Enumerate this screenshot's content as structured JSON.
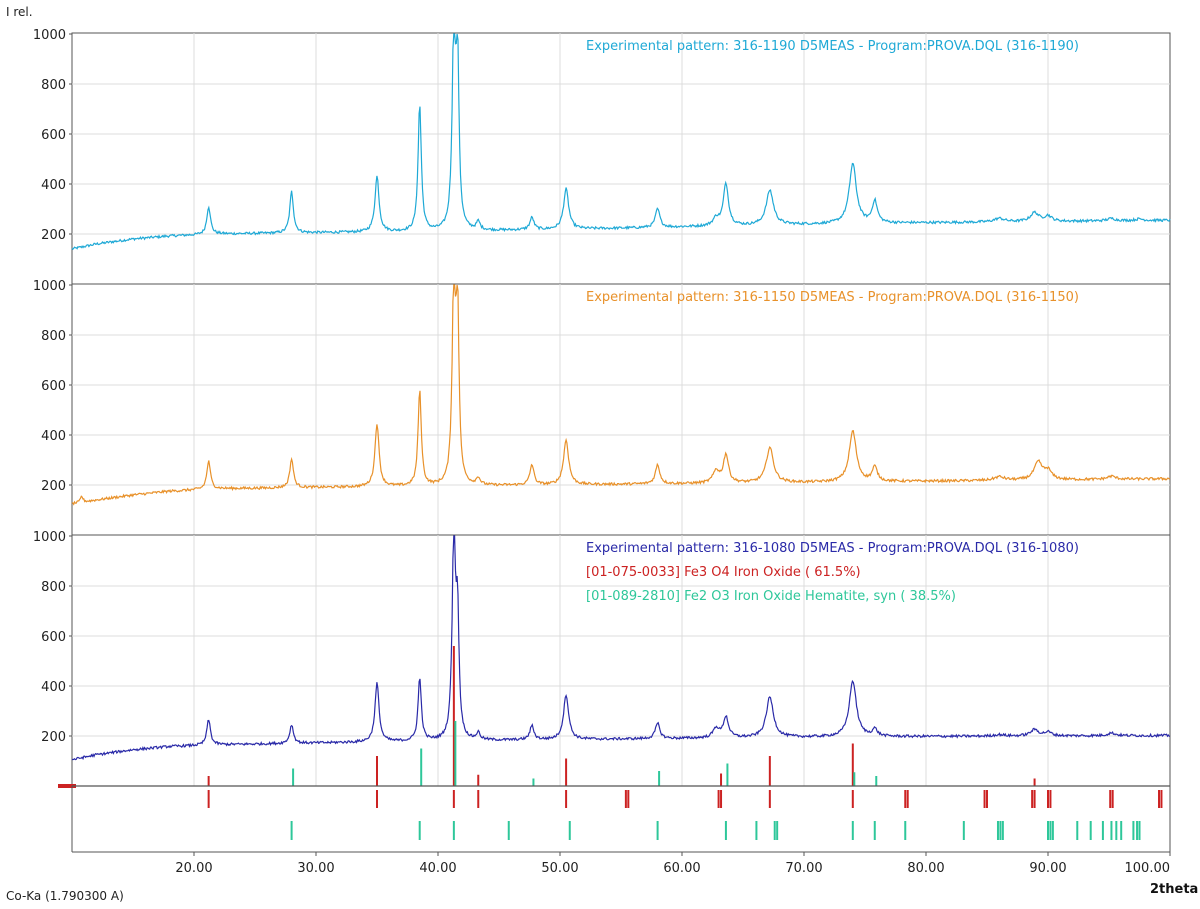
{
  "chart_data": {
    "type": "line",
    "y_axis_title": "I rel.",
    "x_axis_title": "2theta",
    "radiation_label": "Co-Ka (1.790300 A)",
    "xlim": [
      10,
      100
    ],
    "ylim": [
      0,
      1000
    ],
    "x_ticks": [
      {
        "value": 20,
        "label": "20.00"
      },
      {
        "value": 30,
        "label": "30.00"
      },
      {
        "value": 40,
        "label": "40.00"
      },
      {
        "value": 50,
        "label": "50.00"
      },
      {
        "value": 60,
        "label": "60.00"
      },
      {
        "value": 70,
        "label": "70.00"
      },
      {
        "value": 80,
        "label": "80.00"
      },
      {
        "value": 90,
        "label": "90.00"
      },
      {
        "value": 100,
        "label": "100.00"
      }
    ],
    "y_ticks": [
      {
        "value": 200,
        "label": "200"
      },
      {
        "value": 400,
        "label": "400"
      },
      {
        "value": 600,
        "label": "600"
      },
      {
        "value": 800,
        "label": "800"
      },
      {
        "value": 1000,
        "label": "1000"
      }
    ],
    "grid": true,
    "panels": [
      {
        "legend": [
          {
            "text": "Experimental pattern: 316-1190 D5MEAS - Program:PROVA.DQL (316-1190)",
            "color": "#1fa9d6"
          }
        ],
        "series": {
          "color": "#1fa9d6",
          "baseline": [
            [
              10,
              140
            ],
            [
              12,
              160
            ],
            [
              15,
              180
            ],
            [
              18,
              192
            ],
            [
              22,
              200
            ],
            [
              30,
              205
            ],
            [
              40,
              210
            ],
            [
              50,
              218
            ],
            [
              60,
              228
            ],
            [
              70,
              238
            ],
            [
              80,
              245
            ],
            [
              90,
              250
            ],
            [
              100,
              255
            ]
          ],
          "peaks": [
            [
              21.2,
              310,
              0.18
            ],
            [
              28.0,
              370,
              0.18
            ],
            [
              35.0,
              430,
              0.2
            ],
            [
              38.5,
              715,
              0.16
            ],
            [
              41.3,
              1000,
              0.16
            ],
            [
              41.6,
              880,
              0.14
            ],
            [
              43.3,
              245,
              0.18
            ],
            [
              47.7,
              265,
              0.2
            ],
            [
              50.5,
              380,
              0.25
            ],
            [
              58.0,
              300,
              0.22
            ],
            [
              62.8,
              260,
              0.3
            ],
            [
              63.6,
              400,
              0.25
            ],
            [
              67.2,
              375,
              0.35
            ],
            [
              74.0,
              480,
              0.35
            ],
            [
              75.8,
              330,
              0.25
            ],
            [
              86,
              262,
              0.5
            ],
            [
              88.9,
              285,
              0.4
            ],
            [
              90,
              272,
              0.35
            ],
            [
              95.2,
              262,
              0.4
            ],
            [
              97.5,
              260,
              0.4
            ]
          ]
        }
      },
      {
        "legend": [
          {
            "text": "Experimental pattern: 316-1150 D5MEAS - Program:PROVA.DQL (316-1150)",
            "color": "#e8912a"
          }
        ],
        "series": {
          "color": "#e8912a",
          "baseline": [
            [
              10,
              125
            ],
            [
              12,
              140
            ],
            [
              15,
              160
            ],
            [
              18,
              175
            ],
            [
              22,
              185
            ],
            [
              30,
              190
            ],
            [
              40,
              195
            ],
            [
              50,
              200
            ],
            [
              60,
              205
            ],
            [
              70,
              210
            ],
            [
              80,
              215
            ],
            [
              90,
              220
            ],
            [
              100,
              225
            ]
          ],
          "peaks": [
            [
              10.8,
              155,
              0.12
            ],
            [
              21.2,
              295,
              0.18
            ],
            [
              28.0,
              305,
              0.18
            ],
            [
              35.0,
              445,
              0.2
            ],
            [
              38.5,
              575,
              0.16
            ],
            [
              41.3,
              1000,
              0.16
            ],
            [
              41.6,
              880,
              0.14
            ],
            [
              43.3,
              225,
              0.18
            ],
            [
              47.7,
              280,
              0.2
            ],
            [
              50.5,
              380,
              0.25
            ],
            [
              58.0,
              280,
              0.22
            ],
            [
              62.8,
              255,
              0.3
            ],
            [
              63.6,
              320,
              0.25
            ],
            [
              67.2,
              350,
              0.35
            ],
            [
              74.0,
              415,
              0.35
            ],
            [
              75.8,
              270,
              0.25
            ],
            [
              86,
              232,
              0.5
            ],
            [
              89.2,
              290,
              0.4
            ],
            [
              90,
              255,
              0.35
            ],
            [
              95.2,
              235,
              0.4
            ]
          ]
        }
      },
      {
        "legend": [
          {
            "text": "Experimental pattern: 316-1080 D5MEAS - Program:PROVA.DQL (316-1080)",
            "color": "#2a2aa8"
          },
          {
            "text": "[01-075-0033] Fe3 O4 Iron Oxide ( 61.5%)",
            "color": "#cc2222"
          },
          {
            "text": "[01-089-2810] Fe2 O3 Iron Oxide Hematite, syn ( 38.5%)",
            "color": "#2ec79a"
          }
        ],
        "series": {
          "color": "#2a2aa8",
          "baseline": [
            [
              10,
              105
            ],
            [
              12,
              125
            ],
            [
              15,
              145
            ],
            [
              18,
              158
            ],
            [
              22,
              165
            ],
            [
              30,
              172
            ],
            [
              40,
              180
            ],
            [
              50,
              185
            ],
            [
              60,
              190
            ],
            [
              70,
              195
            ],
            [
              80,
              198
            ],
            [
              90,
              200
            ],
            [
              100,
              202
            ]
          ],
          "peaks": [
            [
              21.2,
              265,
              0.18
            ],
            [
              28.0,
              245,
              0.18
            ],
            [
              35.0,
              410,
              0.2
            ],
            [
              38.5,
              430,
              0.16
            ],
            [
              41.3,
              1000,
              0.16
            ],
            [
              41.6,
              650,
              0.14
            ],
            [
              43.3,
              210,
              0.18
            ],
            [
              47.7,
              240,
              0.2
            ],
            [
              50.5,
              365,
              0.25
            ],
            [
              58.0,
              250,
              0.22
            ],
            [
              62.8,
              230,
              0.3
            ],
            [
              63.6,
              275,
              0.25
            ],
            [
              67.2,
              355,
              0.35
            ],
            [
              74.0,
              420,
              0.35
            ],
            [
              75.8,
              225,
              0.25
            ],
            [
              86,
              205,
              0.5
            ],
            [
              88.9,
              225,
              0.4
            ],
            [
              90,
              215,
              0.35
            ],
            [
              95.2,
              212,
              0.4
            ]
          ]
        },
        "sticks_fe3o4": [
          [
            21.2,
            40
          ],
          [
            35.0,
            120
          ],
          [
            41.3,
            560
          ],
          [
            43.3,
            45
          ],
          [
            50.5,
            110
          ],
          [
            63.2,
            50
          ],
          [
            67.2,
            120
          ],
          [
            74.0,
            170
          ],
          [
            88.9,
            30
          ]
        ],
        "sticks_fe2o3": [
          [
            28.0,
            70
          ],
          [
            38.5,
            150
          ],
          [
            41.3,
            260
          ],
          [
            47.7,
            30
          ],
          [
            58.0,
            60
          ],
          [
            63.6,
            90
          ],
          [
            74.0,
            55
          ],
          [
            75.8,
            40
          ]
        ]
      }
    ],
    "reference_lines": {
      "fe3o4": {
        "color": "#cc2222",
        "positions": [
          21.2,
          35.0,
          41.3,
          43.3,
          50.5,
          55.4,
          55.6,
          63.0,
          63.2,
          67.2,
          74.0,
          78.3,
          78.5,
          84.8,
          85.0,
          88.7,
          88.9,
          90.0,
          90.2,
          95.1,
          95.3,
          99.1,
          99.3
        ]
      },
      "fe2o3": {
        "color": "#2ec79a",
        "positions": [
          28.0,
          38.5,
          41.3,
          45.8,
          50.8,
          58.0,
          63.6,
          66.1,
          67.6,
          67.8,
          74.0,
          75.8,
          78.3,
          83.1,
          85.9,
          86.1,
          86.3,
          90.0,
          90.2,
          90.4,
          92.4,
          93.5,
          94.5,
          95.2,
          95.6,
          96.0,
          97.0,
          97.3,
          97.5
        ]
      }
    }
  }
}
